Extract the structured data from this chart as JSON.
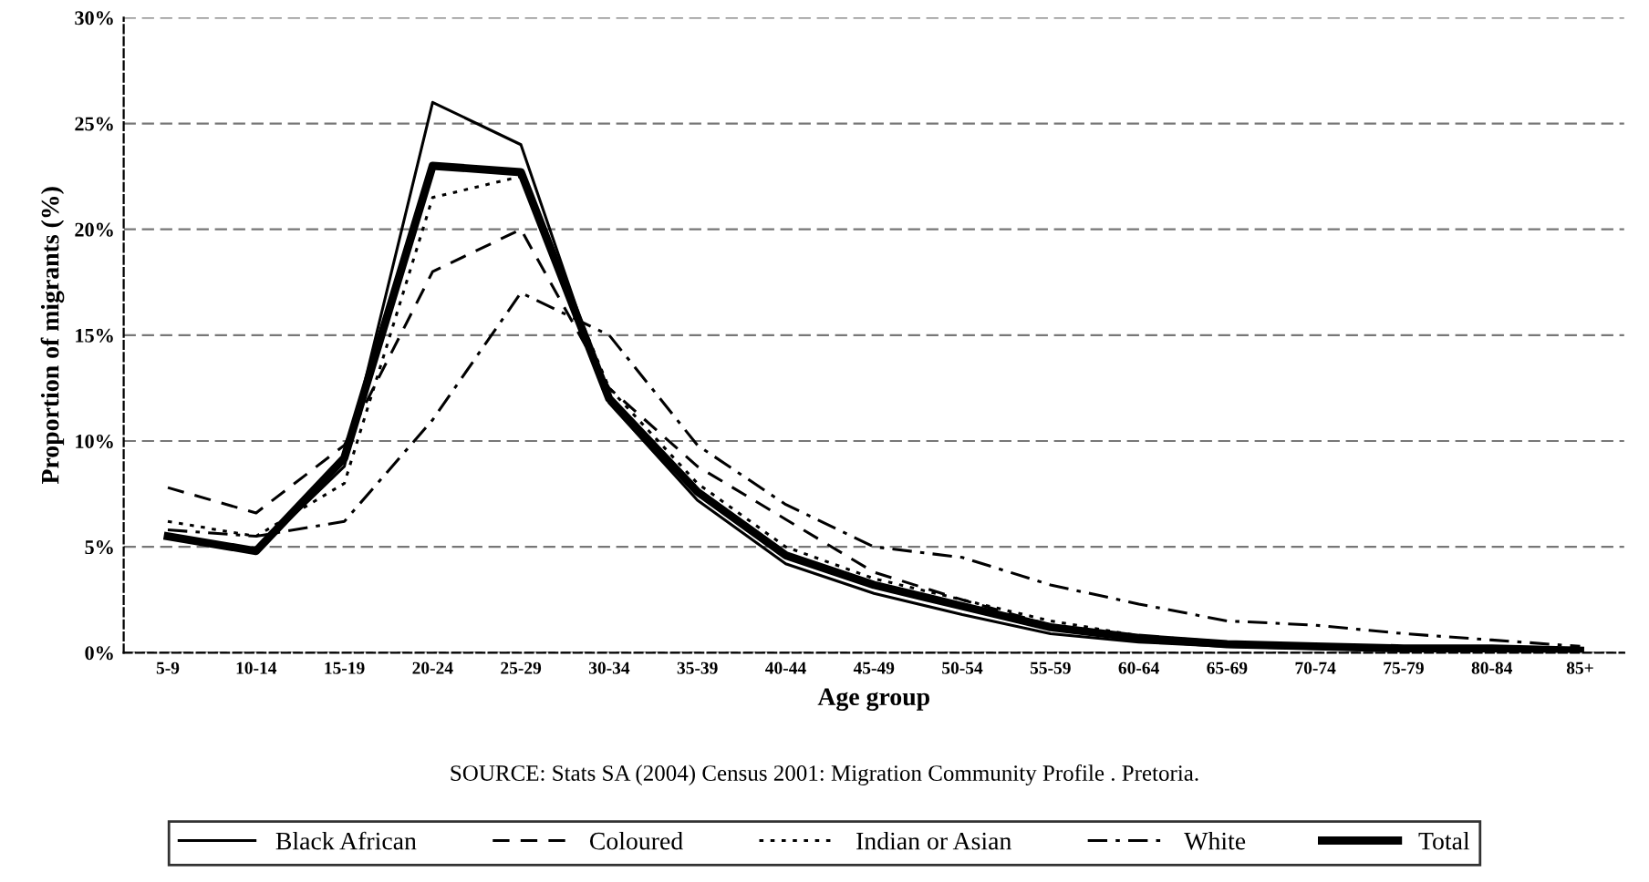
{
  "chart_data": {
    "type": "line",
    "xlabel": "Age group",
    "ylabel": "Proportion of migrants (%)",
    "annotations": [
      "SOURCE: Stats SA (2004) Census 2001: Migration Community Profile . Pretoria."
    ],
    "categories": [
      "5-9",
      "10-14",
      "15-19",
      "20-24",
      "25-29",
      "30-34",
      "35-39",
      "40-44",
      "45-49",
      "50-54",
      "55-59",
      "60-64",
      "65-69",
      "70-74",
      "75-79",
      "80-84",
      "85+"
    ],
    "ylim": [
      0,
      30
    ],
    "yticks": [
      {
        "value": 0,
        "label": "0%"
      },
      {
        "value": 5,
        "label": "5%"
      },
      {
        "value": 10,
        "label": "10%"
      },
      {
        "value": 15,
        "label": "15%"
      },
      {
        "value": 20,
        "label": "20%"
      },
      {
        "value": 25,
        "label": "25%"
      },
      {
        "value": 30,
        "label": "30%"
      }
    ],
    "grid": "y",
    "legend": "bottom",
    "marker": "none",
    "series": [
      {
        "name": "Black African",
        "color": "#000000",
        "line_style": "solid",
        "values": [
          5.5,
          4.8,
          8.8,
          26,
          24,
          11.8,
          7.2,
          4.2,
          2.8,
          1.8,
          0.9,
          0.5,
          0.3,
          0.2,
          0.1,
          0.1,
          0
        ]
      },
      {
        "name": "Coloured",
        "color": "#000000",
        "line_style": "dashed",
        "values": [
          7.8,
          6.6,
          9.8,
          18,
          20,
          12.5,
          8.8,
          6.3,
          3.8,
          2.5,
          1.3,
          0.7,
          0.4,
          0.3,
          0.2,
          0.1,
          0.1
        ]
      },
      {
        "name": "Indian or Asian",
        "color": "#000000",
        "line_style": "dotted",
        "values": [
          6.2,
          5.5,
          8,
          21.5,
          22.5,
          12.5,
          8,
          5,
          3.5,
          2.5,
          1.5,
          0.8,
          0.5,
          0.3,
          0.2,
          0.1,
          0.1
        ]
      },
      {
        "name": "White",
        "color": "#000000",
        "line_style": "dashdot",
        "values": [
          5.8,
          5.5,
          6.2,
          11,
          17,
          15,
          9.8,
          7,
          5,
          4.5,
          3.2,
          2.3,
          1.5,
          1.3,
          0.9,
          0.6,
          0.3
        ]
      },
      {
        "name": "Total",
        "color": "#000000",
        "line_style": "solid",
        "values": [
          5.5,
          4.8,
          9.2,
          23,
          22.7,
          12,
          7.6,
          4.6,
          3.2,
          2.2,
          1.2,
          0.7,
          0.4,
          0.3,
          0.2,
          0.2,
          0.1
        ]
      }
    ]
  }
}
